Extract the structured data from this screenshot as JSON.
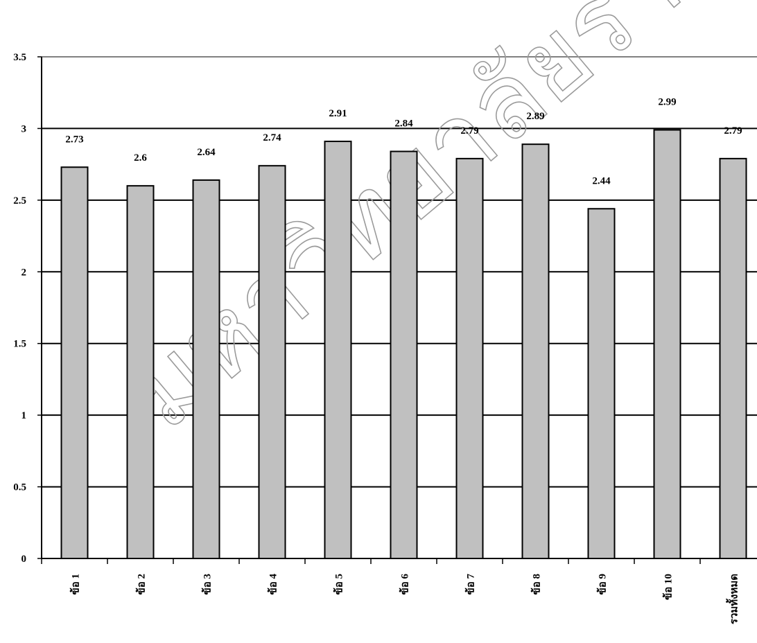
{
  "chart_data": {
    "type": "bar",
    "categories": [
      "ข้อ 1",
      "ข้อ 2",
      "ข้อ 3",
      "ข้อ 4",
      "ข้อ 5",
      "ข้อ 6",
      "ข้อ 7",
      "ข้อ 8",
      "ข้อ 9",
      "ข้อ 10",
      "รวมทั้งหมด"
    ],
    "values": [
      2.73,
      2.6,
      2.64,
      2.74,
      2.91,
      2.84,
      2.79,
      2.89,
      2.44,
      2.99,
      2.79
    ],
    "data_labels": [
      "2.73",
      "2.6",
      "2.64",
      "2.74",
      "2.91",
      "2.84",
      "2.79",
      "2.89",
      "2.44",
      "2.99",
      "2.79"
    ],
    "yticks": [
      "0",
      "0.5",
      "1",
      "1.5",
      "2",
      "2.5",
      "3",
      "3.5"
    ],
    "ylim": [
      0,
      3.5
    ],
    "grid": true,
    "legend": "none",
    "title": "",
    "xlabel": "",
    "ylabel": "",
    "bar_color": "#c0c0c0",
    "bar_edge_color": "#000000",
    "gridline_color": "#000000",
    "top_gridline_color": "#808080"
  },
  "watermark": {
    "text": "มหาวิทยาลัยราชภัฏธนบุรี"
  }
}
